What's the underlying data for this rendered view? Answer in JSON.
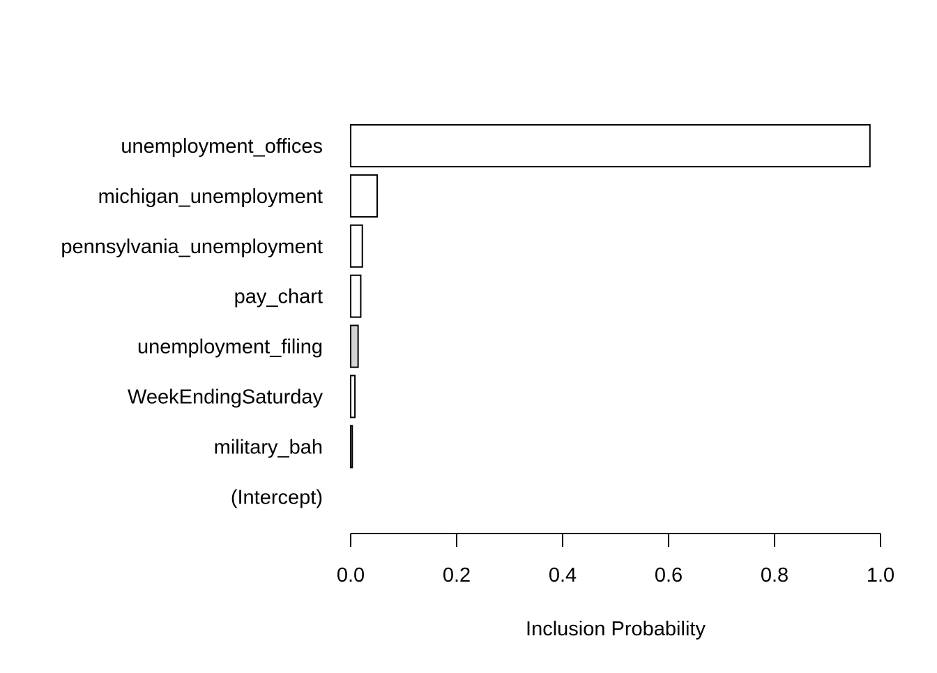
{
  "chart_data": {
    "type": "bar",
    "orientation": "horizontal",
    "title": "",
    "xlabel": "Inclusion Probability",
    "ylabel": "",
    "xlim": [
      0,
      1
    ],
    "x_ticks": [
      "0.0",
      "0.2",
      "0.4",
      "0.6",
      "0.8",
      "1.0"
    ],
    "categories": [
      "unemployment_offices",
      "michigan_unemployment",
      "pennsylvania_unemployment",
      "pay_chart",
      "unemployment_filing",
      "WeekEndingSaturday",
      "military_bah",
      "(Intercept)"
    ],
    "values": [
      0.98,
      0.05,
      0.022,
      0.019,
      0.014,
      0.008,
      0.003,
      0.0
    ],
    "bar_fills": [
      "#ffffff",
      "#ffffff",
      "#ffffff",
      "#ffffff",
      "#d3d3d3",
      "#ffffff",
      "#ffffff",
      "#ffffff"
    ],
    "grid": false
  }
}
